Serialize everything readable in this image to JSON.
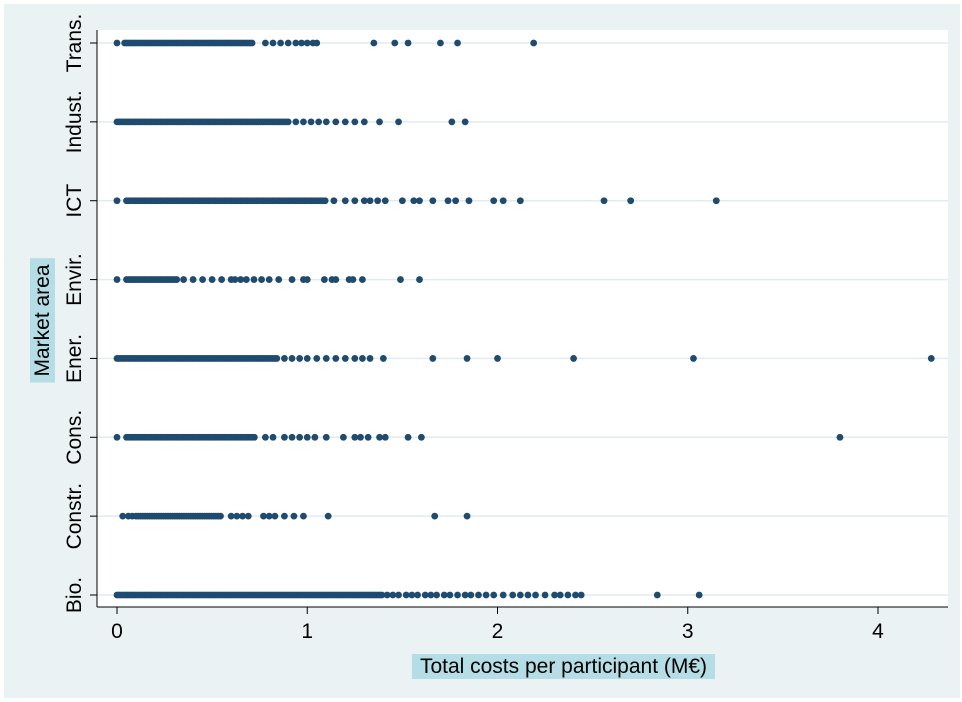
{
  "chart_data": {
    "type": "scatter",
    "title": "",
    "xlabel": "Total costs per participant (M€)",
    "ylabel": "Market area",
    "xlim": [
      0,
      4.3
    ],
    "xticks": [
      0,
      1,
      2,
      3,
      4
    ],
    "categories": [
      "Bio.",
      "Constr.",
      "Cons.",
      "Ener.",
      "Envir.",
      "ICT",
      "Indust.",
      "Trans."
    ],
    "grid": true,
    "legend": "none",
    "colors": {
      "marker": "#1f4b6e",
      "background": "#eaf2f3",
      "plot_area": "#ffffff",
      "grid": "#e4ebee",
      "label_highlight": "#b5dde6"
    },
    "series": [
      {
        "category": "Trans.",
        "dense_range": [
          0.05,
          0.72
        ],
        "x": [
          0.0,
          0.04,
          0.78,
          0.82,
          0.86,
          0.9,
          0.94,
          0.97,
          1.0,
          1.03,
          1.05,
          1.35,
          1.46,
          1.53,
          1.7,
          1.79,
          2.19
        ]
      },
      {
        "category": "Indust.",
        "dense_range": [
          0.0,
          0.9
        ],
        "x": [
          0.94,
          0.98,
          1.02,
          1.06,
          1.1,
          1.15,
          1.2,
          1.25,
          1.3,
          1.38,
          1.48,
          1.76,
          1.83
        ]
      },
      {
        "category": "ICT",
        "dense_range": [
          0.05,
          1.1
        ],
        "x": [
          0.0,
          1.14,
          1.2,
          1.25,
          1.3,
          1.33,
          1.37,
          1.41,
          1.5,
          1.56,
          1.59,
          1.66,
          1.74,
          1.78,
          1.85,
          1.98,
          2.03,
          2.12,
          2.56,
          2.7,
          3.15
        ]
      },
      {
        "category": "Envir.",
        "dense_range": [
          0.05,
          0.32
        ],
        "x": [
          0.0,
          0.35,
          0.4,
          0.45,
          0.5,
          0.55,
          0.6,
          0.62,
          0.65,
          0.68,
          0.72,
          0.76,
          0.8,
          0.85,
          0.92,
          0.98,
          1.0,
          1.09,
          1.13,
          1.15,
          1.22,
          1.24,
          1.29,
          1.49,
          1.59
        ]
      },
      {
        "category": "Ener.",
        "dense_range": [
          0.0,
          0.85
        ],
        "x": [
          0.88,
          0.92,
          0.96,
          1.0,
          1.05,
          1.1,
          1.15,
          1.2,
          1.25,
          1.29,
          1.33,
          1.4,
          1.66,
          1.84,
          2.0,
          2.4,
          3.03,
          4.28
        ]
      },
      {
        "category": "Cons.",
        "dense_range": [
          0.05,
          0.73
        ],
        "x": [
          0.0,
          0.78,
          0.82,
          0.88,
          0.92,
          0.96,
          1.0,
          1.04,
          1.1,
          1.19,
          1.25,
          1.28,
          1.32,
          1.38,
          1.41,
          1.53,
          1.6,
          3.8
        ]
      },
      {
        "category": "Constr.",
        "dense_range": [
          0.1,
          0.55
        ],
        "x": [
          0.03,
          0.06,
          0.08,
          0.6,
          0.63,
          0.66,
          0.69,
          0.77,
          0.8,
          0.83,
          0.88,
          0.93,
          0.98,
          1.11,
          1.67,
          1.84
        ]
      },
      {
        "category": "Bio.",
        "dense_range": [
          0.0,
          1.4
        ],
        "x": [
          1.42,
          1.45,
          1.48,
          1.52,
          1.55,
          1.58,
          1.62,
          1.65,
          1.68,
          1.72,
          1.75,
          1.79,
          1.83,
          1.86,
          1.9,
          1.94,
          1.98,
          2.03,
          2.08,
          2.12,
          2.16,
          2.2,
          2.25,
          2.3,
          2.33,
          2.37,
          2.41,
          2.44,
          2.84,
          3.06
        ]
      }
    ]
  }
}
